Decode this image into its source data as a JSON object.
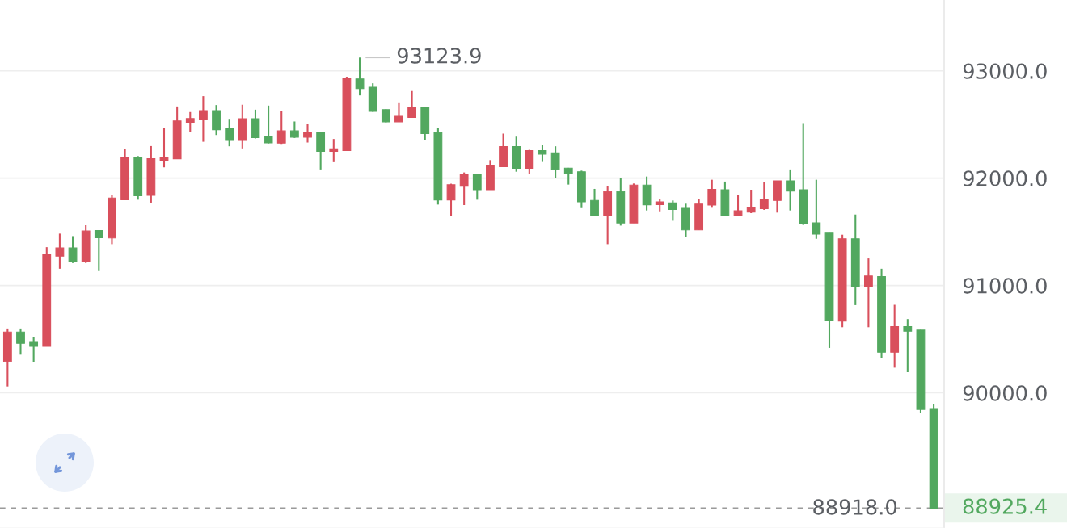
{
  "chart_data": {
    "type": "candlestick",
    "categories": [
      null,
      null,
      null,
      null,
      null,
      null,
      null,
      null,
      null,
      null,
      null,
      null,
      null,
      null,
      null,
      null,
      null,
      null,
      null,
      null,
      null,
      null,
      null,
      null,
      null,
      null,
      null,
      null,
      null,
      null,
      null,
      null,
      null,
      null,
      null,
      null,
      null,
      null,
      null,
      null,
      null,
      null,
      null,
      null,
      null,
      null,
      null,
      null,
      null,
      null,
      null,
      null,
      null,
      null,
      null,
      null,
      null,
      null,
      null,
      null,
      null,
      null,
      null,
      null,
      null,
      null,
      null,
      null,
      null,
      null,
      null,
      null
    ],
    "ohlc": [
      [
        90292,
        90599,
        90059,
        90566
      ],
      [
        90566,
        90599,
        90355,
        90461
      ],
      [
        90478,
        90518,
        90285,
        90433
      ],
      [
        90433,
        91357,
        90433,
        91290
      ],
      [
        91274,
        91483,
        91156,
        91350
      ],
      [
        91350,
        91460,
        91209,
        91222
      ],
      [
        91219,
        91561,
        91209,
        91508
      ],
      [
        91511,
        91513,
        91134,
        91445
      ],
      [
        91443,
        91845,
        91385,
        91815
      ],
      [
        91799,
        92269,
        91799,
        92194
      ],
      [
        92194,
        92206,
        91799,
        91837
      ],
      [
        91840,
        92299,
        91772,
        92181
      ],
      [
        92166,
        92465,
        92101,
        92196
      ],
      [
        92181,
        92668,
        92181,
        92533
      ],
      [
        92520,
        92616,
        92427,
        92555
      ],
      [
        92543,
        92764,
        92339,
        92628
      ],
      [
        92628,
        92681,
        92402,
        92452
      ],
      [
        92465,
        92545,
        92297,
        92352
      ],
      [
        92352,
        92684,
        92277,
        92553
      ],
      [
        92553,
        92638,
        92370,
        92377
      ],
      [
        92392,
        92676,
        92324,
        92329
      ],
      [
        92327,
        92623,
        92319,
        92440
      ],
      [
        92440,
        92528,
        92375,
        92382
      ],
      [
        92382,
        92503,
        92332,
        92427
      ],
      [
        92427,
        92427,
        92081,
        92249
      ],
      [
        92249,
        92365,
        92149,
        92274
      ],
      [
        92257,
        92945,
        92257,
        92927
      ],
      [
        92925,
        93123.9,
        92771,
        92834
      ],
      [
        92847,
        92884,
        92618,
        92623
      ],
      [
        92638,
        92641,
        92520,
        92525
      ],
      [
        92525,
        92706,
        92525,
        92576
      ],
      [
        92566,
        92812,
        92566,
        92663
      ],
      [
        92663,
        92663,
        92352,
        92415
      ],
      [
        92425,
        92465,
        91754,
        91797
      ],
      [
        91797,
        91948,
        91646,
        91938
      ],
      [
        91925,
        92053,
        91749,
        92038
      ],
      [
        92035,
        92035,
        91799,
        91892
      ],
      [
        91892,
        92168,
        91892,
        92121
      ],
      [
        92106,
        92415,
        92106,
        92294
      ],
      [
        92294,
        92387,
        92060,
        92091
      ],
      [
        92091,
        92264,
        92038,
        92256
      ],
      [
        92256,
        92307,
        92151,
        92224
      ],
      [
        92236,
        92297,
        92000,
        92081
      ],
      [
        92093,
        92096,
        91940,
        92043
      ],
      [
        92060,
        92070,
        91721,
        91779
      ],
      [
        91792,
        91900,
        91651,
        91654
      ],
      [
        91654,
        91922,
        91385,
        91875
      ],
      [
        91875,
        91998,
        91558,
        91583
      ],
      [
        91583,
        91950,
        91583,
        91935
      ],
      [
        91935,
        92015,
        91699,
        91752
      ],
      [
        91754,
        91804,
        91691,
        91779
      ],
      [
        91769,
        91792,
        91603,
        91709
      ],
      [
        91719,
        91762,
        91450,
        91518
      ],
      [
        91518,
        91804,
        91518,
        91759
      ],
      [
        91749,
        91985,
        91724,
        91895
      ],
      [
        91892,
        91968,
        91649,
        91649
      ],
      [
        91649,
        91842,
        91649,
        91696
      ],
      [
        91684,
        91892,
        91674,
        91726
      ],
      [
        91716,
        91960,
        91704,
        91804
      ],
      [
        91792,
        91975,
        91679,
        91975
      ],
      [
        91975,
        92081,
        91699,
        91880
      ],
      [
        91892,
        92513,
        91563,
        91573
      ],
      [
        91583,
        91985,
        91435,
        91478
      ],
      [
        91495,
        91495,
        90418,
        90674
      ],
      [
        90669,
        91473,
        90611,
        91435
      ],
      [
        91435,
        91661,
        90817,
        90993
      ],
      [
        90993,
        91252,
        90611,
        91088
      ],
      [
        91083,
        91156,
        90327,
        90378
      ],
      [
        90378,
        90820,
        90234,
        90616
      ],
      [
        90616,
        90687,
        90192,
        90574
      ],
      [
        90584,
        90586,
        89813,
        89845
      ],
      [
        89853,
        89895,
        88918,
        88925.4
      ]
    ],
    "colors": [
      "#d94f5c",
      "#52a85f",
      "#52a85f",
      "#d94f5c",
      "#d94f5c",
      "#52a85f",
      "#d94f5c",
      "#52a85f",
      "#d94f5c",
      "#d94f5c",
      "#52a85f",
      "#d94f5c",
      "#d94f5c",
      "#d94f5c",
      "#d94f5c",
      "#d94f5c",
      "#52a85f",
      "#52a85f",
      "#d94f5c",
      "#52a85f",
      "#52a85f",
      "#d94f5c",
      "#52a85f",
      "#d94f5c",
      "#52a85f",
      "#d94f5c",
      "#d94f5c",
      "#52a85f",
      "#52a85f",
      "#52a85f",
      "#d94f5c",
      "#d94f5c",
      "#52a85f",
      "#52a85f",
      "#d94f5c",
      "#d94f5c",
      "#52a85f",
      "#d94f5c",
      "#d94f5c",
      "#52a85f",
      "#d94f5c",
      "#52a85f",
      "#52a85f",
      "#52a85f",
      "#52a85f",
      "#52a85f",
      "#d94f5c",
      "#52a85f",
      "#d94f5c",
      "#52a85f",
      "#d94f5c",
      "#52a85f",
      "#52a85f",
      "#d94f5c",
      "#d94f5c",
      "#52a85f",
      "#d94f5c",
      "#d94f5c",
      "#d94f5c",
      "#d94f5c",
      "#52a85f",
      "#52a85f",
      "#52a85f",
      "#52a85f",
      "#d94f5c",
      "#52a85f",
      "#d94f5c",
      "#52a85f",
      "#d94f5c",
      "#52a85f",
      "#52a85f",
      "#52a85f"
    ],
    "ylim": [
      88740,
      93660
    ],
    "yticks": [
      {
        "value": 90000,
        "label": "90000.0"
      },
      {
        "value": 91000,
        "label": "91000.0"
      },
      {
        "value": 92000,
        "label": "92000.0"
      },
      {
        "value": 93000,
        "label": "93000.0"
      }
    ],
    "grid": "y",
    "tick_labels": "y",
    "ref_lines": [
      {
        "axis": "y",
        "value": 88925.4,
        "label": "88925.4",
        "color": "#9a9a9a",
        "line_style": "dashed"
      }
    ],
    "annotations": [
      "93123.9",
      {
        "text": "88918.0",
        "y": 88918.0
      }
    ]
  }
}
